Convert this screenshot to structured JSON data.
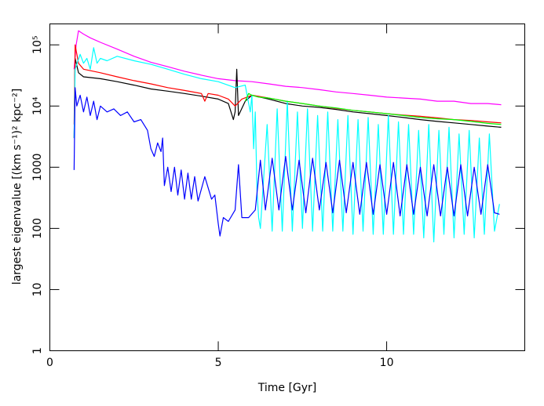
{
  "chart_data": {
    "type": "line",
    "x_label": "Time [Gyr]",
    "y_label": "largest eigenvalue [(km s⁻¹)² kpc⁻²]",
    "log_y": true,
    "xlim": [
      0,
      14.1
    ],
    "xticks": [
      0,
      5,
      10
    ],
    "ylim": [
      1,
      220000
    ],
    "yticks": [
      1,
      10,
      100,
      1000,
      {
        "value": 10000,
        "label": "10⁴"
      },
      {
        "value": 100000,
        "label": "10⁵"
      }
    ],
    "series": [
      {
        "color": "#ff00ff",
        "x": [
          0.72,
          0.78,
          0.85,
          0.92,
          1.0,
          1.2,
          1.5,
          2.0,
          2.5,
          3.0,
          3.5,
          4.0,
          4.5,
          5.0,
          5.5,
          6.0,
          6.5,
          7.0,
          7.5,
          8.0,
          8.5,
          9.0,
          9.5,
          10.0,
          10.5,
          11.0,
          11.5,
          12.0,
          12.5,
          13.0,
          13.4
        ],
        "values": [
          40000,
          100000,
          170000,
          160000,
          150000,
          130000,
          110000,
          85000,
          65000,
          52000,
          44000,
          37000,
          32000,
          28000,
          26000,
          25000,
          23000,
          21000,
          20000,
          18500,
          17000,
          16000,
          15000,
          14000,
          13500,
          13000,
          12000,
          12000,
          11000,
          11000,
          10500
        ]
      },
      {
        "color": "#000000",
        "x": [
          0.72,
          0.75,
          0.85,
          1.0,
          1.5,
          2.0,
          2.5,
          3.0,
          3.5,
          4.0,
          4.5,
          5.0,
          5.3,
          5.45,
          5.5,
          5.55,
          5.6,
          5.8,
          6.0,
          6.5,
          7.0,
          7.5,
          8.0,
          8.5,
          9.0,
          9.5,
          10.0,
          10.5,
          11.0,
          11.5,
          12.0,
          12.5,
          13.0,
          13.4
        ],
        "values": [
          3000,
          60000,
          35000,
          30000,
          28000,
          25000,
          22000,
          19000,
          17500,
          16000,
          14500,
          13000,
          11000,
          6000,
          8000,
          40000,
          7000,
          12000,
          15000,
          13000,
          11000,
          10000,
          9500,
          8800,
          8000,
          7500,
          7000,
          6500,
          6000,
          5600,
          5300,
          5000,
          4700,
          4500
        ]
      },
      {
        "color": "#ff0000",
        "x": [
          0.72,
          0.75,
          0.85,
          1.0,
          1.5,
          2.0,
          2.5,
          3.0,
          3.5,
          4.0,
          4.5,
          4.6,
          4.7,
          5.0,
          5.3,
          5.5,
          5.7,
          6.0,
          6.5,
          7.0,
          7.5,
          8.0,
          8.5,
          9.0,
          9.5,
          10.0,
          10.5,
          11.0,
          11.5,
          12.0,
          12.5,
          13.0,
          13.4
        ],
        "values": [
          5000,
          100000,
          50000,
          40000,
          35000,
          30000,
          26000,
          23000,
          20000,
          18000,
          16000,
          12000,
          16000,
          15000,
          13000,
          10000,
          13000,
          15000,
          13500,
          12000,
          11000,
          10000,
          9200,
          8500,
          8000,
          7500,
          7100,
          6800,
          6400,
          6000,
          5800,
          5500,
          5300
        ]
      },
      {
        "color": "#00ffff",
        "x": [
          0.72,
          0.75,
          0.9,
          1.0,
          1.1,
          1.2,
          1.3,
          1.4,
          1.5,
          1.7,
          2.0,
          2.5,
          3.0,
          3.5,
          4.0,
          4.5,
          5.0,
          5.5,
          5.8,
          5.95,
          6.0,
          6.05,
          6.1,
          6.15,
          6.2,
          6.25,
          6.45,
          6.6,
          6.75,
          6.9,
          7.05,
          7.2,
          7.35,
          7.5,
          7.65,
          7.8,
          7.95,
          8.1,
          8.25,
          8.4,
          8.55,
          8.7,
          8.85,
          9.0,
          9.15,
          9.3,
          9.45,
          9.6,
          9.75,
          9.9,
          10.05,
          10.2,
          10.35,
          10.5,
          10.65,
          10.8,
          10.95,
          11.1,
          11.25,
          11.4,
          11.55,
          11.7,
          11.85,
          12.0,
          12.15,
          12.3,
          12.45,
          12.6,
          12.75,
          12.9,
          13.05,
          13.2,
          13.35
        ],
        "values": [
          3000,
          40000,
          70000,
          50000,
          60000,
          40000,
          90000,
          50000,
          60000,
          55000,
          65000,
          55000,
          48000,
          40000,
          33000,
          28000,
          25000,
          20000,
          22000,
          8000,
          15000,
          2000,
          8000,
          400,
          150,
          100,
          5000,
          90,
          9000,
          90,
          12000,
          90,
          8000,
          100,
          9000,
          90,
          7000,
          90,
          8000,
          90,
          6000,
          90,
          7000,
          80,
          6000,
          90,
          6500,
          80,
          5000,
          80,
          7000,
          80,
          5500,
          80,
          5000,
          80,
          4000,
          70,
          5000,
          60,
          4000,
          80,
          4500,
          70,
          3500,
          80,
          4000,
          70,
          3000,
          80,
          3500,
          90,
          250
        ]
      },
      {
        "color": "#0000ff",
        "x": [
          0.72,
          0.75,
          0.8,
          0.9,
          1.0,
          1.1,
          1.2,
          1.3,
          1.4,
          1.5,
          1.7,
          1.9,
          2.1,
          2.3,
          2.5,
          2.7,
          2.9,
          3.0,
          3.1,
          3.2,
          3.3,
          3.35,
          3.4,
          3.5,
          3.6,
          3.7,
          3.8,
          3.9,
          4.0,
          4.1,
          4.2,
          4.3,
          4.4,
          4.6,
          4.8,
          4.9,
          5.0,
          5.05,
          5.15,
          5.3,
          5.5,
          5.6,
          5.7,
          5.9,
          6.1,
          6.25,
          6.4,
          6.6,
          6.8,
          7.0,
          7.2,
          7.4,
          7.6,
          7.8,
          8.0,
          8.2,
          8.4,
          8.6,
          8.8,
          9.0,
          9.2,
          9.4,
          9.6,
          9.8,
          10.0,
          10.2,
          10.4,
          10.6,
          10.8,
          11.0,
          11.2,
          11.4,
          11.6,
          11.8,
          12.0,
          12.2,
          12.4,
          12.6,
          12.8,
          13.0,
          13.2,
          13.35
        ],
        "values": [
          900,
          20000,
          10000,
          15000,
          8000,
          14000,
          7000,
          12000,
          6000,
          10000,
          8000,
          9000,
          7000,
          8000,
          5500,
          6000,
          4000,
          2000,
          1500,
          2500,
          1800,
          3000,
          500,
          1000,
          400,
          1000,
          350,
          900,
          300,
          800,
          300,
          700,
          280,
          700,
          300,
          350,
          120,
          75,
          150,
          130,
          200,
          1100,
          150,
          150,
          200,
          1300,
          200,
          1400,
          200,
          1500,
          200,
          1300,
          180,
          1400,
          200,
          1200,
          180,
          1300,
          180,
          1200,
          170,
          1200,
          170,
          1100,
          170,
          1200,
          160,
          1100,
          170,
          1000,
          160,
          1100,
          160,
          1000,
          160,
          1100,
          160,
          1000,
          170,
          1100,
          180,
          170
        ]
      },
      {
        "color": "#00ff00",
        "x": [
          5.8,
          5.9,
          6.0,
          6.2,
          6.5,
          7.0,
          7.5,
          8.0,
          8.5,
          9.0,
          9.5,
          10.0,
          10.5,
          11.0,
          11.5,
          12.0,
          12.5,
          13.0,
          13.4
        ],
        "values": [
          12000,
          16000,
          15000,
          14000,
          13500,
          12000,
          11000,
          10000,
          9300,
          8500,
          8000,
          7500,
          7000,
          6500,
          6200,
          6000,
          5600,
          5200,
          5000
        ]
      }
    ]
  }
}
